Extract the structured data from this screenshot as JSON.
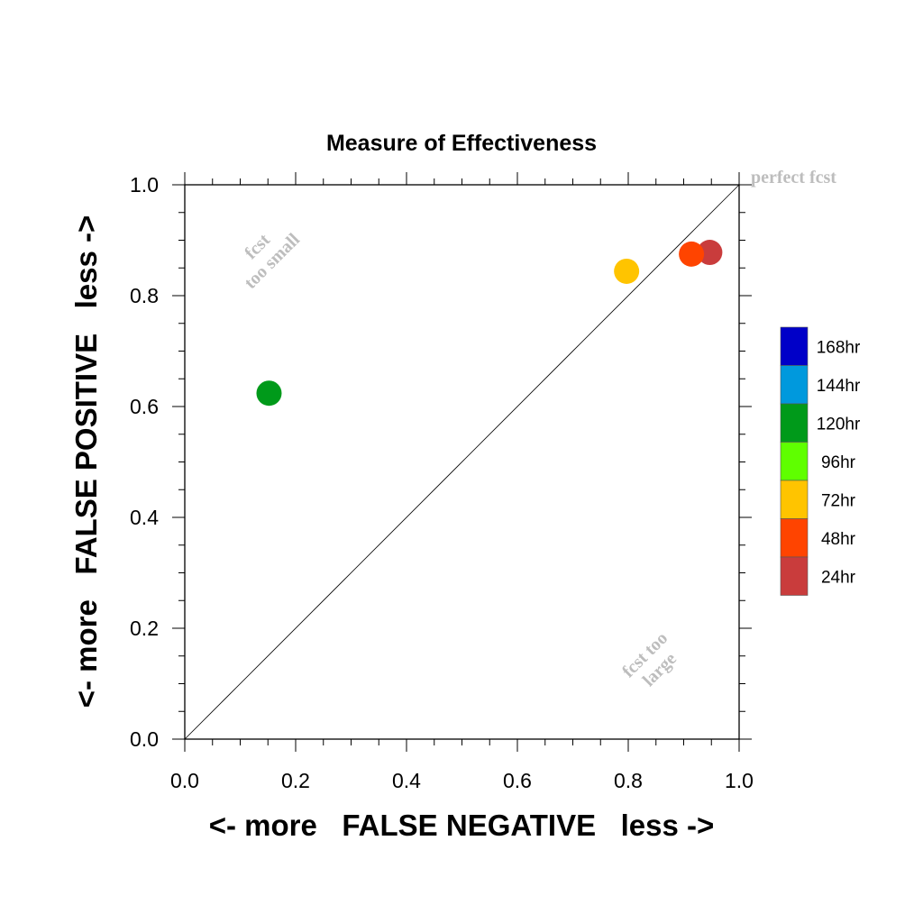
{
  "chart_data": {
    "type": "scatter",
    "title": "Measure of Effectiveness",
    "xlabel": "<- more   FALSE NEGATIVE   less ->",
    "ylabel": "<- more   FALSE POSITIVE   less ->",
    "xlim": [
      0.0,
      1.0
    ],
    "ylim": [
      0.0,
      1.0
    ],
    "xticks": [
      "0.0",
      "0.2",
      "0.4",
      "0.6",
      "0.8",
      "1.0"
    ],
    "yticks": [
      "0.0",
      "0.2",
      "0.4",
      "0.6",
      "0.8",
      "1.0"
    ],
    "grid": false,
    "diagonal_line": true,
    "annotations": {
      "perfect": "perfect fcst",
      "too_small_line1": "fcst",
      "too_small_line2": "too small",
      "too_large_line1": "fcst too",
      "too_large_line2": "large"
    },
    "legend": {
      "placement": "right",
      "entries": [
        {
          "label": "168hr",
          "color": "#0000c8"
        },
        {
          "label": "144hr",
          "color": "#0099dd"
        },
        {
          "label": "120hr",
          "color": "#009a1a"
        },
        {
          "label": "96hr",
          "color": "#5fff00"
        },
        {
          "label": "72hr",
          "color": "#ffc400"
        },
        {
          "label": "48hr",
          "color": "#ff4400"
        },
        {
          "label": "24hr",
          "color": "#c93c3c"
        }
      ]
    },
    "points": [
      {
        "series": "120hr",
        "x": 0.152,
        "y": 0.624,
        "color": "#009a1a"
      },
      {
        "series": "72hr",
        "x": 0.797,
        "y": 0.844,
        "color": "#ffc400"
      },
      {
        "series": "24hr",
        "x": 0.947,
        "y": 0.878,
        "color": "#c93c3c"
      },
      {
        "series": "48hr",
        "x": 0.914,
        "y": 0.875,
        "color": "#ff4400"
      }
    ]
  }
}
